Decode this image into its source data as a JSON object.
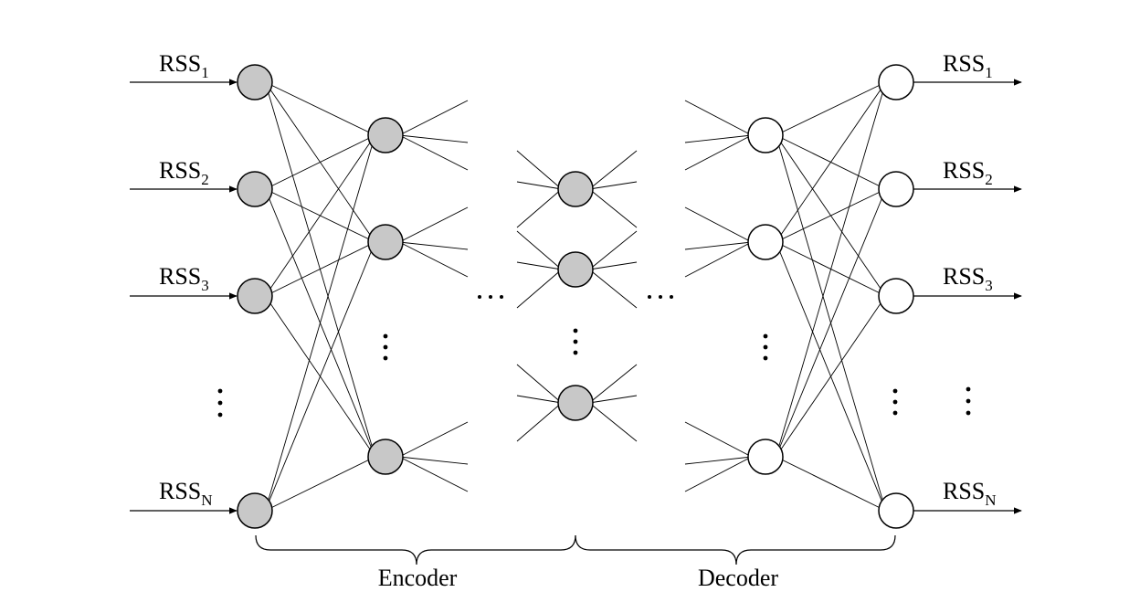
{
  "inputs": [
    {
      "base": "RSS",
      "sub": "1"
    },
    {
      "base": "RSS",
      "sub": "2"
    },
    {
      "base": "RSS",
      "sub": "3"
    },
    {
      "base": "RSS",
      "sub": "N"
    }
  ],
  "outputs": [
    {
      "base": "RSS",
      "sub": "1"
    },
    {
      "base": "RSS",
      "sub": "2"
    },
    {
      "base": "RSS",
      "sub": "3"
    },
    {
      "base": "RSS",
      "sub": "N"
    }
  ],
  "braces": {
    "encoder": "Encoder",
    "decoder": "Decoder"
  },
  "colors": {
    "encoder_node_fill": "#c8c8c8",
    "decoder_node_fill": "#ffffff",
    "stroke": "#000000"
  }
}
